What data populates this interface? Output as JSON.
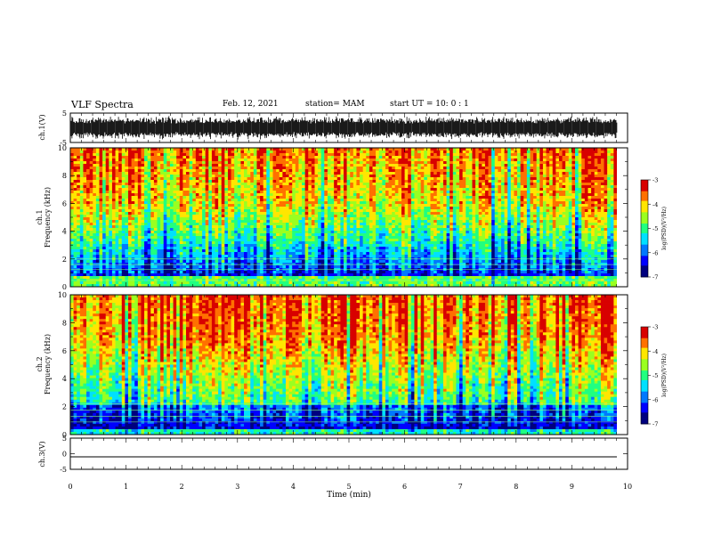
{
  "header": {
    "title": "VLF Spectra",
    "date": "Feb. 12, 2021",
    "station": "station= MAM",
    "start": "start  UT =   10: 0  : 1"
  },
  "colors": {
    "colormap": [
      "#00007f",
      "#0000ff",
      "#0078ff",
      "#00e0ff",
      "#20ff80",
      "#9aff20",
      "#ffe600",
      "#ff7000",
      "#d80000"
    ]
  },
  "chart_data": [
    {
      "type": "line",
      "panel": "ch1-waveform",
      "ylabel": "ch.1(V)",
      "ylim": [
        -5,
        5
      ],
      "yticks": [
        "5",
        "-5"
      ],
      "description_values": {
        "amplitude_min": -4,
        "amplitude_max": 4
      }
    },
    {
      "type": "heatmap",
      "panel": "ch1-spectrogram",
      "ylabel": "ch.1\nFrequency (kHz)",
      "ylabel_lines": [
        "ch.1",
        "Frequency (kHz)"
      ],
      "ylim": [
        0,
        10
      ],
      "yticks": [
        "0",
        "2",
        "4",
        "6",
        "8",
        "10"
      ],
      "colorbar": {
        "label": "log(PSD)(V²/Hz)",
        "range": [
          -7,
          -3
        ],
        "ticks": [
          "-3",
          "-4",
          "-5",
          "-6",
          "-7"
        ]
      }
    },
    {
      "type": "heatmap",
      "panel": "ch2-spectrogram",
      "ylabel_lines": [
        "ch.2",
        "Frequency (kHz)"
      ],
      "ylim": [
        0,
        10
      ],
      "yticks": [
        "0",
        "2",
        "4",
        "6",
        "8",
        "10"
      ],
      "colorbar": {
        "label": "log(PSD)(V²/Hz)",
        "range": [
          -7,
          -3
        ],
        "ticks": [
          "-3",
          "-4",
          "-5",
          "-6",
          "-7"
        ]
      }
    },
    {
      "type": "line",
      "panel": "ch3-waveform",
      "ylabel": "ch.3(V)",
      "ylim": [
        -5,
        5
      ],
      "yticks": [
        "5",
        "0",
        "-5"
      ],
      "values": [
        -1,
        -1
      ]
    }
  ],
  "xaxis": {
    "label": "Time (min)",
    "range": [
      0,
      10
    ],
    "ticks": [
      "0",
      "1",
      "2",
      "3",
      "4",
      "5",
      "6",
      "7",
      "8",
      "9",
      "10"
    ]
  },
  "colorbar_label": "log(PSD)(V²/Hz)"
}
